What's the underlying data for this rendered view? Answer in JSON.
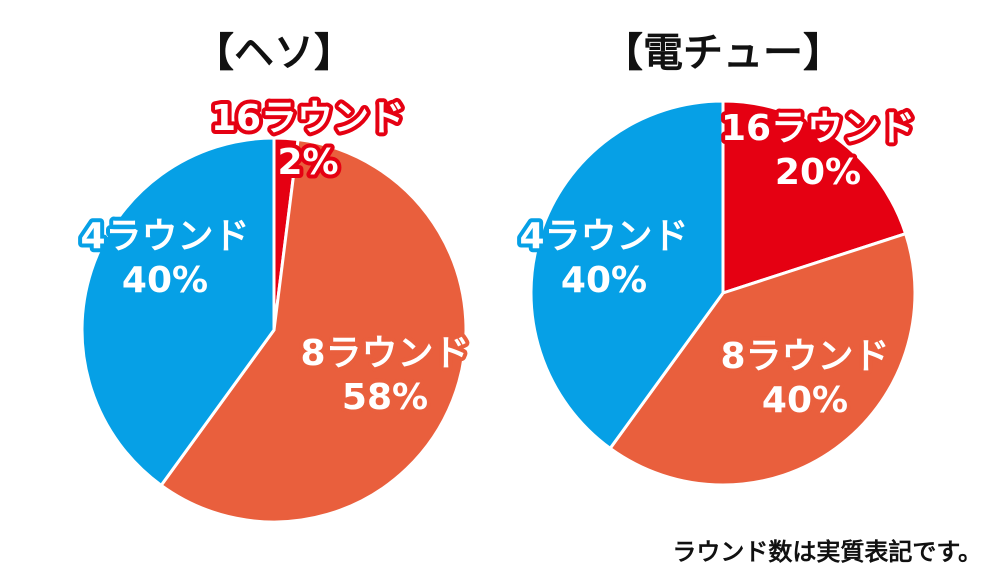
{
  "chart_data": [
    {
      "type": "pie",
      "title": "【ヘソ】",
      "slices": [
        {
          "name": "16ラウンド",
          "value": 2,
          "value_label": "2%",
          "color": "#e50012",
          "outline": "#e50012"
        },
        {
          "name": "8ラウンド",
          "value": 58,
          "value_label": "58%",
          "color": "#e95f3d",
          "outline": "#e95f3d"
        },
        {
          "name": "4ラウンド",
          "value": 40,
          "value_label": "40%",
          "color": "#06a0e6",
          "outline": "#06a0e6"
        }
      ]
    },
    {
      "type": "pie",
      "title": "【電チュー】",
      "slices": [
        {
          "name": "16ラウンド",
          "value": 20,
          "value_label": "20%",
          "color": "#e50012",
          "outline": "#e50012"
        },
        {
          "name": "8ラウンド",
          "value": 40,
          "value_label": "40%",
          "color": "#e95f3d",
          "outline": "#e95f3d"
        },
        {
          "name": "4ラウンド",
          "value": 40,
          "value_label": "40%",
          "color": "#06a0e6",
          "outline": "#06a0e6"
        }
      ]
    }
  ],
  "footnote": "ラウンド数は実質表記です。"
}
